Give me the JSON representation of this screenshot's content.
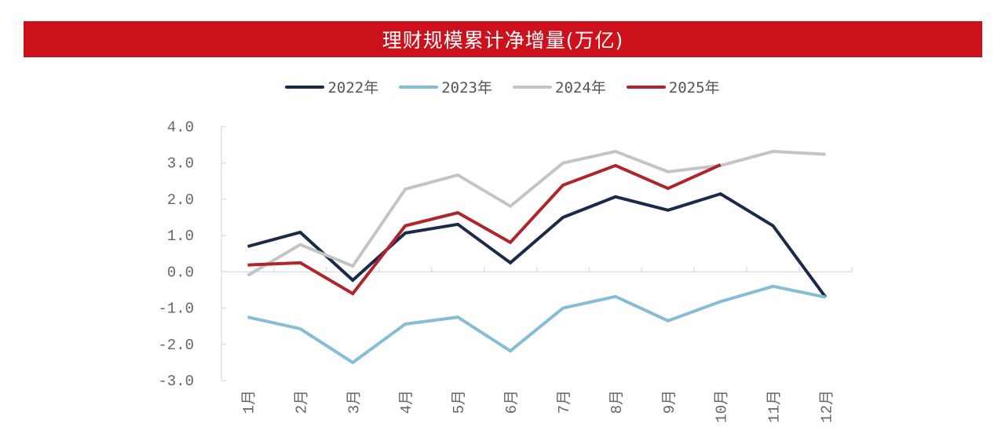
{
  "chart_data": {
    "type": "line",
    "title": "理财规模累计净增量(万亿)",
    "xlabel": "",
    "ylabel": "",
    "categories": [
      "1月",
      "2月",
      "3月",
      "4月",
      "5月",
      "6月",
      "7月",
      "8月",
      "9月",
      "10月",
      "11月",
      "12月"
    ],
    "ylim": [
      -3.0,
      4.0
    ],
    "yticks": [
      "4.0",
      "3.0",
      "2.0",
      "1.0",
      "0.0",
      "-1.0",
      "-2.0",
      "-3.0"
    ],
    "ytick_values": [
      4,
      3,
      2,
      1,
      0,
      -1,
      -2,
      -3
    ],
    "grid": false,
    "legend_position": "top-center",
    "series": [
      {
        "name": "2022年",
        "color": "#1b2a4a",
        "values": [
          0.7,
          1.09,
          -0.23,
          1.07,
          1.31,
          0.25,
          1.5,
          2.07,
          1.7,
          2.15,
          1.27,
          -0.7
        ]
      },
      {
        "name": "2023年",
        "color": "#86bdd6",
        "values": [
          -1.25,
          -1.57,
          -2.5,
          -1.44,
          -1.25,
          -2.18,
          -1.0,
          -0.68,
          -1.35,
          -0.82,
          -0.4,
          -0.7
        ]
      },
      {
        "name": "2024年",
        "color": "#c4c4c4",
        "values": [
          -0.1,
          0.75,
          0.16,
          2.28,
          2.67,
          1.81,
          3.0,
          3.32,
          2.76,
          2.93,
          3.32,
          3.24
        ]
      },
      {
        "name": "2025年",
        "color": "#b0242b",
        "values": [
          0.19,
          0.25,
          -0.6,
          1.27,
          1.63,
          0.81,
          2.39,
          2.93,
          2.3,
          2.95,
          null,
          null
        ]
      }
    ]
  },
  "title_bar_color": "#cc111d"
}
